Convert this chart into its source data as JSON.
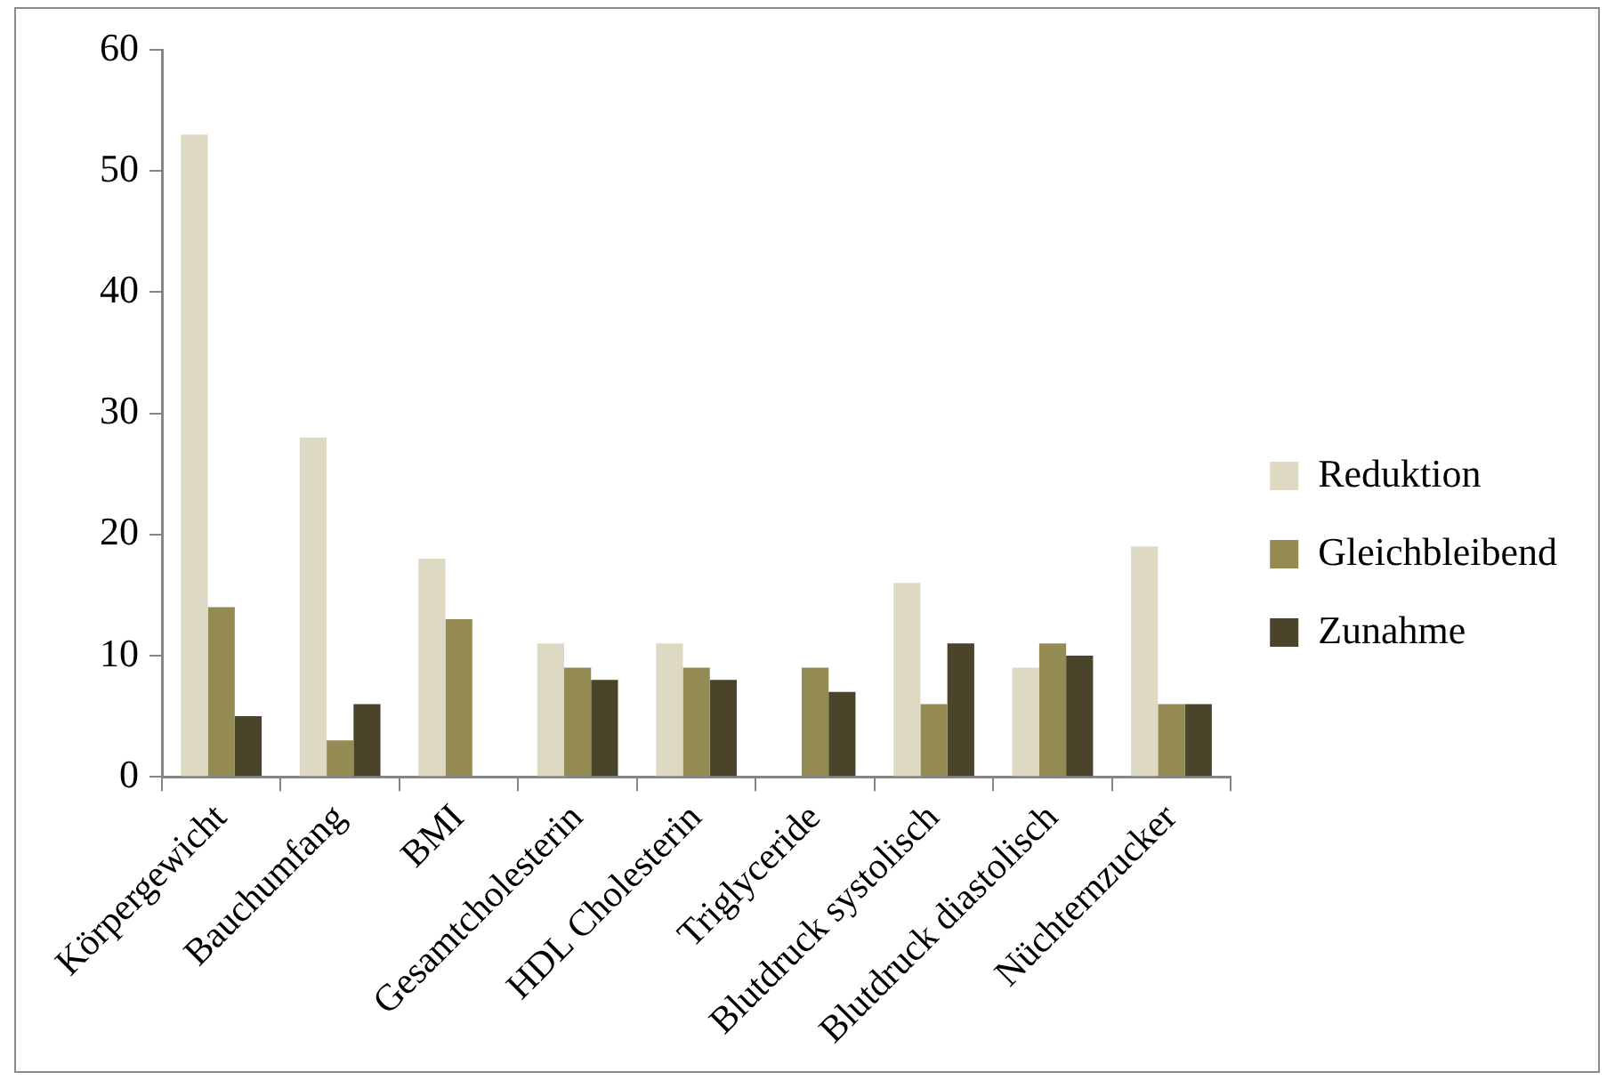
{
  "chart_data": {
    "type": "bar",
    "categories": [
      "Körpergewicht",
      "Bauchumfang",
      "BMI",
      "Gesamtcholesterin",
      "HDL Cholesterin",
      "Triglyceride",
      "Blutdruck systolisch",
      "Blutdruck diastolisch",
      "Nüchternzucker"
    ],
    "series": [
      {
        "name": "Reduktion",
        "color": "#ddd9c3",
        "values": [
          53,
          28,
          18,
          11,
          11,
          0,
          16,
          9,
          19
        ]
      },
      {
        "name": "Gleichbleibend",
        "color": "#948a54",
        "values": [
          14,
          3,
          13,
          9,
          9,
          9,
          6,
          11,
          6
        ]
      },
      {
        "name": "Zunahme",
        "color": "#4a452a",
        "values": [
          5,
          6,
          0,
          8,
          8,
          7,
          11,
          10,
          6
        ]
      }
    ],
    "ylim": [
      0,
      60
    ],
    "yticks": [
      0,
      10,
      20,
      30,
      40,
      50,
      60
    ],
    "legend": "right"
  }
}
